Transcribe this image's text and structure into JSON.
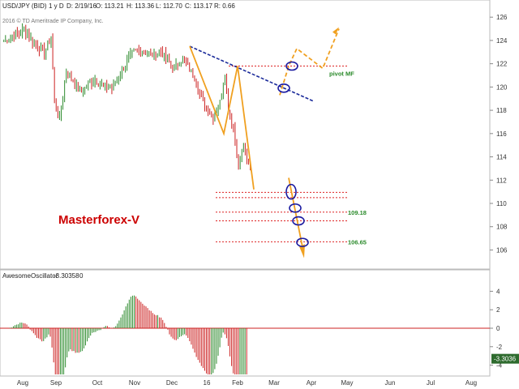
{
  "header": {
    "symbol": "USD/JPY (BID)",
    "timeframe": "1 y D",
    "date": "D: 2/19/16",
    "open": "O: 113.21",
    "high": "H: 113.36",
    "low": "L: 112.70",
    "close": "C: 113.17",
    "range": "R: 0.66"
  },
  "copyright": "2016 © TD Ameritrade IP Company, Inc.",
  "brand_label": "Masterforex-V",
  "chart_data": [
    {
      "type": "candlestick",
      "title": "USD/JPY (BID)",
      "ylim": [
        104.5,
        126.5
      ],
      "y_ticks": [
        106,
        108,
        110,
        112,
        114,
        116,
        118,
        120,
        122,
        124,
        126
      ],
      "x_ticks": [
        "Aug",
        "Sep",
        "Oct",
        "Nov",
        "Dec",
        "16",
        "Feb",
        "Mar",
        "Apr",
        "May",
        "Jun",
        "Jul",
        "Aug"
      ],
      "price_anchors": [
        [
          0,
          123.9
        ],
        [
          6,
          124.4
        ],
        [
          12,
          124.9
        ],
        [
          18,
          123.8
        ],
        [
          24,
          122.9
        ],
        [
          28,
          124.4
        ],
        [
          30,
          118.6
        ],
        [
          33,
          117.2
        ],
        [
          37,
          121.4
        ],
        [
          42,
          120.3
        ],
        [
          46,
          119.6
        ],
        [
          50,
          120.3
        ],
        [
          54,
          120.6
        ],
        [
          58,
          120.1
        ],
        [
          64,
          119.9
        ],
        [
          70,
          121.4
        ],
        [
          76,
          122.9
        ],
        [
          82,
          123.2
        ],
        [
          88,
          122.7
        ],
        [
          93,
          123.1
        ],
        [
          97,
          122.2
        ],
        [
          101,
          121.6
        ],
        [
          106,
          122.4
        ],
        [
          110,
          121.5
        ],
        [
          113,
          120.8
        ],
        [
          116,
          119.4
        ],
        [
          120,
          118.2
        ],
        [
          124,
          117.4
        ],
        [
          128,
          118.7
        ],
        [
          131,
          121.2
        ],
        [
          133,
          117.9
        ],
        [
          136,
          116.6
        ],
        [
          139,
          113.2
        ],
        [
          142,
          114.9
        ],
        [
          144,
          113.4
        ],
        [
          146,
          113.17
        ]
      ],
      "total_bars": 147,
      "pivot_label": "pivot MF",
      "level_labels": [
        "109.18",
        "106.65"
      ],
      "red_levels": [
        121.8,
        110.95,
        110.5,
        109.25,
        108.5,
        106.7
      ],
      "blue_trendline": [
        [
          114,
          123.5
        ],
        [
          166,
          118.8
        ]
      ],
      "orange_zigzag": [
        [
          115,
          123.5
        ],
        [
          135,
          116
        ],
        [
          145,
          121.8
        ],
        [
          153,
          111.2
        ]
      ],
      "orange_dashed_path": [
        [
          169,
          119.3
        ],
        [
          175,
          121.8
        ],
        [
          180,
          123.4
        ],
        [
          196,
          121.6
        ],
        [
          205,
          125
        ]
      ],
      "orange_down_arrow": [
        [
          176,
          112.2
        ],
        [
          188,
          105.7
        ]
      ],
      "circled_points": [
        [
          178,
          121.8
        ],
        [
          173,
          119.8
        ],
        [
          178,
          111
        ],
        [
          179,
          109.5
        ],
        [
          181,
          108.4
        ],
        [
          183,
          106.65
        ]
      ]
    },
    {
      "type": "bar",
      "title": "AwesomeOscillator",
      "current_value": "-3.30358",
      "extra_value": "0",
      "last_value_label": "-3.3036",
      "ylim": [
        -5,
        5
      ],
      "y_ticks": [
        4,
        2,
        0,
        -2,
        -4
      ],
      "zero_line": 0
    }
  ]
}
